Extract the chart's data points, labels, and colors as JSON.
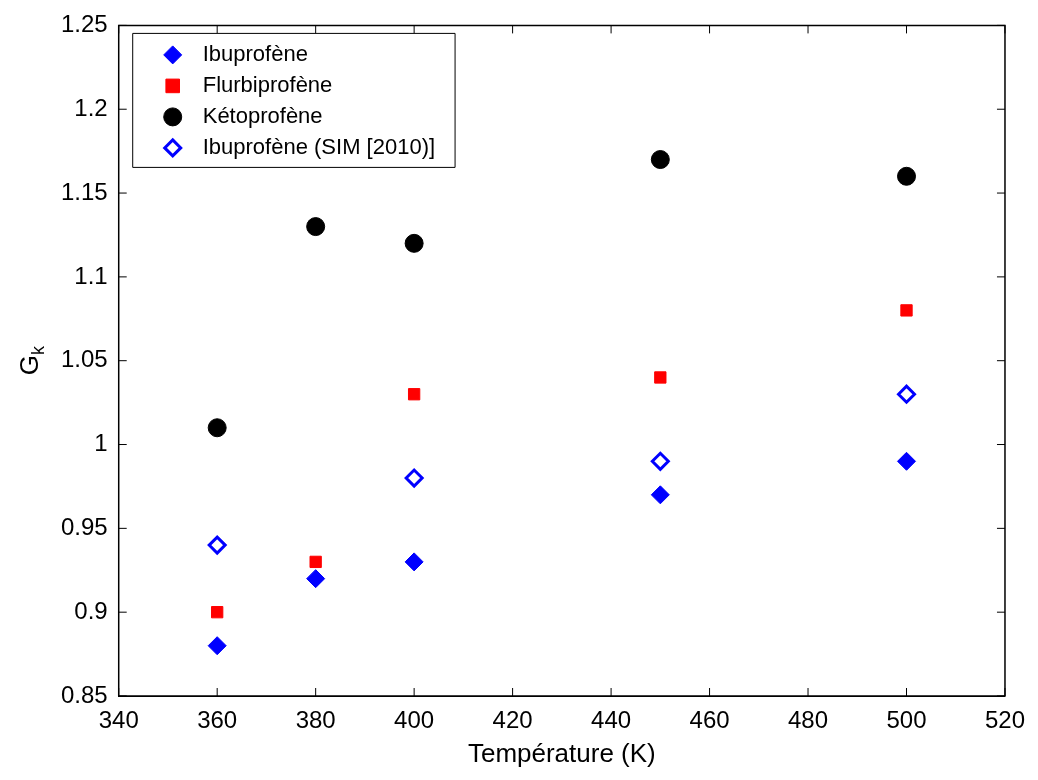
{
  "chart_data": {
    "type": "scatter",
    "xlabel": "Température (K)",
    "ylabel": "G$_{k}$",
    "xlim": [
      340,
      520
    ],
    "xticks": [
      340,
      360,
      380,
      400,
      420,
      440,
      460,
      480,
      500,
      520
    ],
    "ylim": [
      0.85,
      1.25
    ],
    "yticks": [
      0.85,
      0.9,
      0.95,
      1,
      1.05,
      1.1,
      1.15,
      1.2,
      1.25
    ],
    "grid": false,
    "legend": "top left",
    "series": [
      {
        "name": "Ibuprofène",
        "color": "#0000ff",
        "marker": "diamond",
        "x": [
          360,
          380,
          400,
          450,
          500
        ],
        "values": [
          0.88,
          0.92,
          0.93,
          0.97,
          0.99
        ]
      },
      {
        "name": "Flurbiprofène",
        "color": "#ff0000",
        "marker": "square",
        "x": [
          360,
          380,
          400,
          450,
          500
        ],
        "values": [
          0.9,
          0.93,
          1.03,
          1.04,
          1.08
        ]
      },
      {
        "name": "Kétoprofène",
        "color": "#000000",
        "marker": "circle",
        "x": [
          360,
          380,
          400,
          450,
          500
        ],
        "values": [
          1.01,
          1.13,
          1.12,
          1.17,
          1.16
        ]
      },
      {
        "name": "Ibuprofène (SIM [2010)]",
        "color": "#0000ff",
        "marker": "diamond",
        "x": [
          360,
          400,
          450,
          500
        ],
        "values": [
          0.94,
          0.98,
          0.99,
          1.03
        ]
      }
    ]
  }
}
